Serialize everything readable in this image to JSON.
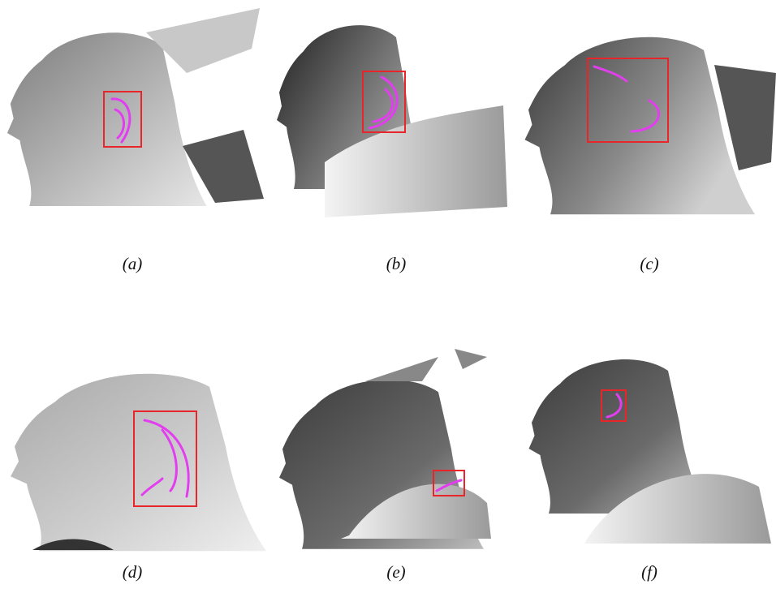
{
  "figure": {
    "panels": [
      {
        "caption": "(a)"
      },
      {
        "caption": "(b)"
      },
      {
        "caption": "(c)"
      },
      {
        "caption": "(d)"
      },
      {
        "caption": "(e)"
      },
      {
        "caption": "(f)"
      }
    ]
  }
}
